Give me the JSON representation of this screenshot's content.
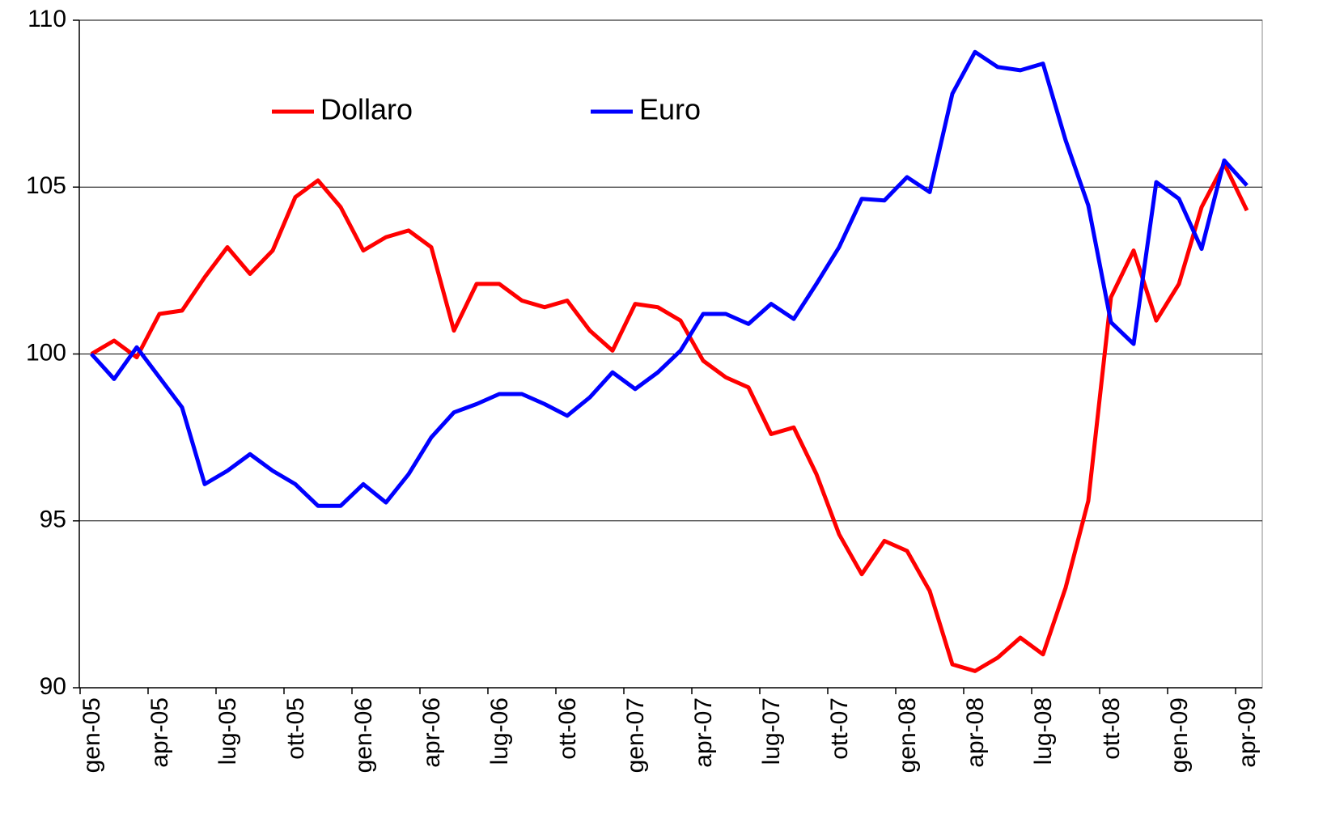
{
  "chart_data": {
    "type": "line",
    "categories": [
      "gen-05",
      null,
      null,
      "apr-05",
      null,
      null,
      "lug-05",
      null,
      null,
      "ott-05",
      null,
      null,
      "gen-06",
      null,
      null,
      "apr-06",
      null,
      null,
      "lug-06",
      null,
      null,
      "ott-06",
      null,
      null,
      "gen-07",
      null,
      null,
      "apr-07",
      null,
      null,
      "lug-07",
      null,
      null,
      "ott-07",
      null,
      null,
      "gen-08",
      null,
      null,
      "apr-08",
      null,
      null,
      "lug-08",
      null,
      null,
      "ott-08",
      null,
      null,
      "gen-09",
      null,
      null,
      "apr-09"
    ],
    "series": [
      {
        "name": "Dollaro",
        "color": "#ff0000",
        "values": [
          100,
          100.4,
          99.9,
          101.2,
          101.3,
          102.3,
          103.2,
          102.4,
          103.1,
          104.7,
          105.2,
          104.4,
          103.1,
          103.5,
          103.7,
          103.2,
          100.7,
          102.1,
          102.1,
          101.6,
          101.4,
          101.6,
          100.7,
          100.1,
          101.5,
          101.4,
          101.0,
          99.8,
          99.3,
          99.0,
          97.6,
          97.8,
          96.4,
          94.6,
          93.4,
          94.4,
          94.1,
          92.9,
          90.7,
          90.5,
          90.9,
          91.5,
          91.0,
          93.0,
          95.6,
          101.7,
          103.1,
          101.0,
          102.1,
          104.4,
          105.7,
          104.3
        ]
      },
      {
        "name": "Euro",
        "color": "#0000ff",
        "values": [
          100,
          99.25,
          100.2,
          99.3,
          98.4,
          96.1,
          96.5,
          97.0,
          96.5,
          96.1,
          95.45,
          95.45,
          96.1,
          95.55,
          96.4,
          97.5,
          98.25,
          98.5,
          98.8,
          98.8,
          98.5,
          98.15,
          98.7,
          99.45,
          98.95,
          99.45,
          100.1,
          101.2,
          101.2,
          100.9,
          101.5,
          101.05,
          102.1,
          103.2,
          104.65,
          104.6,
          105.3,
          104.85,
          107.8,
          109.05,
          108.6,
          108.5,
          108.7,
          106.4,
          104.45,
          100.95,
          100.3,
          105.15,
          104.65,
          103.15,
          105.8,
          105.05
        ]
      }
    ],
    "ylim": [
      90,
      110
    ],
    "yticks": [
      90,
      95,
      100,
      105,
      110
    ],
    "grid": true
  }
}
